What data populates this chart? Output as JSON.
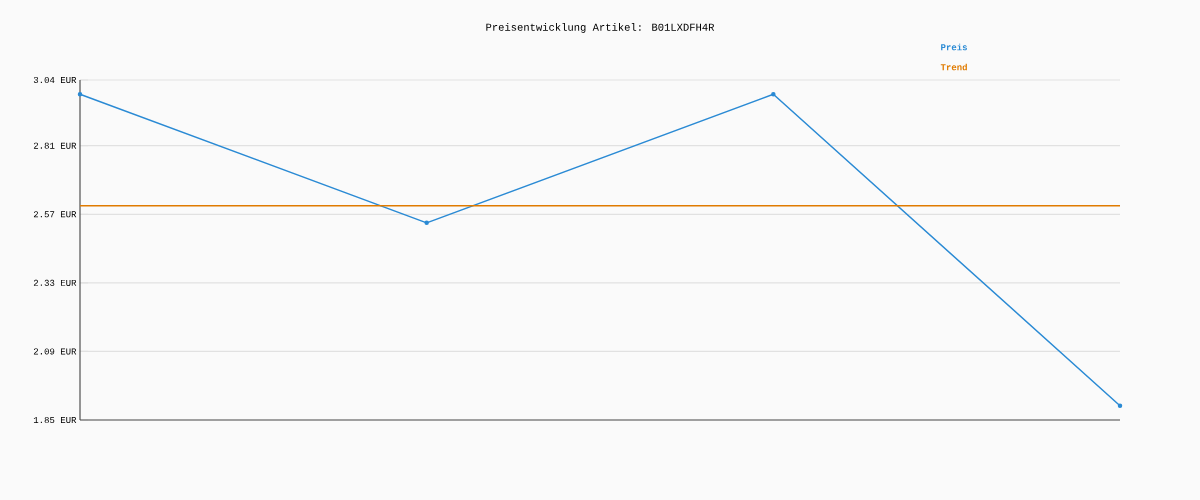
{
  "chart_data": {
    "type": "line",
    "title": "Preisentwicklung Artikel: B01LXDFH4R",
    "categories": [
      null,
      null,
      null,
      null
    ],
    "series": [
      {
        "name": "Preis",
        "color": "#2a8ad4",
        "marker": "circle",
        "values": [
          2.99,
          2.54,
          2.99,
          1.9
        ]
      },
      {
        "name": "Trend",
        "color": "#e07b00",
        "marker": "none",
        "values": [
          2.6,
          2.6,
          2.6,
          2.6
        ]
      }
    ],
    "ylim": [
      1.85,
      3.04
    ],
    "yticks": [
      {
        "value": 1.85,
        "label": "1.85 EUR"
      },
      {
        "value": 2.09,
        "label": "2.09 EUR"
      },
      {
        "value": 2.33,
        "label": "2.33 EUR"
      },
      {
        "value": 2.57,
        "label": "2.57 EUR"
      },
      {
        "value": 2.81,
        "label": "2.81 EUR"
      },
      {
        "value": 3.04,
        "label": "3.04 EUR"
      }
    ],
    "grid": "y",
    "legend": "top right"
  }
}
